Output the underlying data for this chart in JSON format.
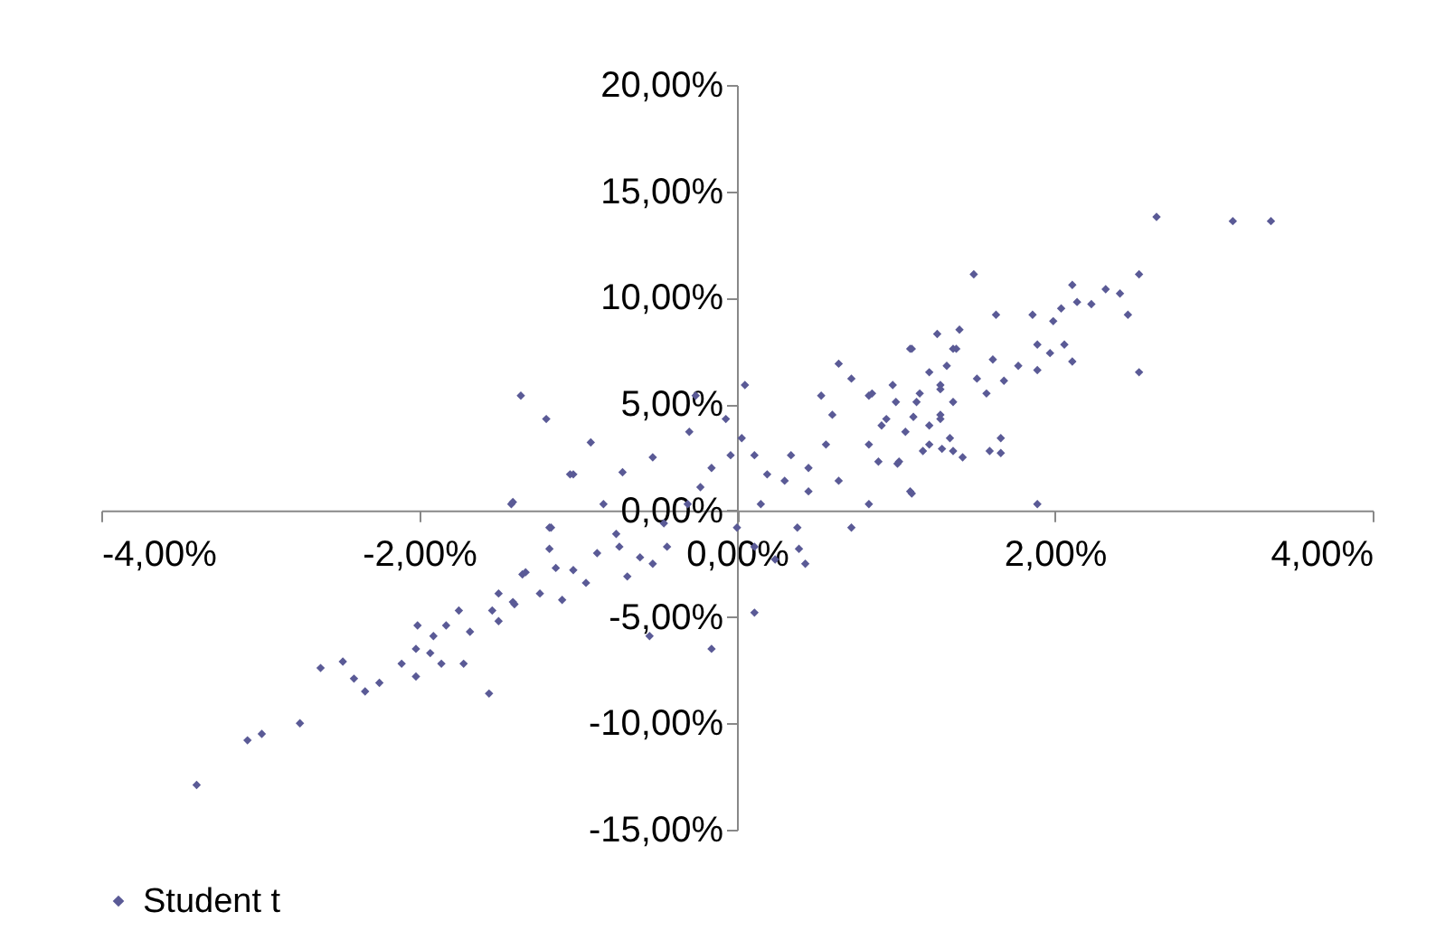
{
  "chart_data": {
    "type": "scatter",
    "marker": "diamond",
    "legend": "bottom",
    "grid": false,
    "xlim": [
      -4,
      4
    ],
    "ylim": [
      -15,
      20
    ],
    "xticks": [
      {
        "value": -4,
        "label": "-4,00%"
      },
      {
        "value": -2,
        "label": "-2,00%"
      },
      {
        "value": 0,
        "label": "0,00%"
      },
      {
        "value": 2,
        "label": "2,00%"
      },
      {
        "value": 4,
        "label": "4,00%"
      }
    ],
    "yticks": [
      {
        "value": -15,
        "label": "-15,00%"
      },
      {
        "value": -10,
        "label": "-10,00%"
      },
      {
        "value": -5,
        "label": "-5,00%"
      },
      {
        "value": 0,
        "label": "0,00%"
      },
      {
        "value": 5,
        "label": "5,00%"
      },
      {
        "value": 10,
        "label": "10,00%"
      },
      {
        "value": 15,
        "label": "15,00%"
      },
      {
        "value": 20,
        "label": "20,00%"
      }
    ],
    "series": [
      {
        "name": "Student t",
        "color": "#5a5a96",
        "x": [
          -3.4,
          -3.08,
          -2.99,
          -2.75,
          -2.62,
          -2.48,
          -2.41,
          -2.34,
          -2.25,
          -2.11,
          -2.02,
          -2.02,
          -2.01,
          -1.93,
          -1.86,
          -1.91,
          -1.83,
          -1.75,
          -1.72,
          -1.68,
          -1.56,
          -1.54,
          -1.5,
          -1.5,
          -1.41,
          -1.35,
          -1.42,
          -1.17,
          -1.14,
          -1.1,
          -1.03,
          -0.95,
          -0.84,
          -0.74,
          -0.61,
          -0.55,
          -0.44,
          -0.16,
          0.11,
          -1.36,
          -1.2,
          -0.92,
          -0.3,
          -0.26,
          -0.07,
          0.05,
          -1.41,
          -1.05,
          -0.72,
          -0.53,
          -1.18,
          -1.18,
          -1.33,
          -1.24,
          -1.4,
          -1.03,
          -0.88,
          -0.76,
          -0.69,
          -0.53,
          -0.46,
          -0.31,
          -0.23,
          -0.16,
          -0.04,
          0.0,
          0.11,
          0.24,
          0.38,
          0.39,
          0.43,
          0.15,
          0.19,
          0.3,
          0.34,
          0.45,
          0.45,
          0.56,
          0.64,
          0.6,
          0.72,
          0.64,
          0.72,
          0.83,
          0.83,
          0.91,
          1.02,
          1.09,
          1.06,
          1.21,
          1.13,
          1.09,
          1.36,
          1.4,
          1.26,
          1.28,
          1.36,
          1.28,
          0.83,
          0.98,
          0.53,
          0.03,
          0.11,
          2.64,
          3.12,
          3.36,
          1.49,
          2.53,
          2.11,
          2.32,
          2.41,
          2.14,
          2.23,
          2.04,
          1.99,
          1.86,
          1.63,
          2.46,
          1.1,
          1.38,
          1.89,
          2.06,
          1.97,
          2.11,
          1.77,
          1.61,
          1.89,
          2.53,
          1.68,
          1.51,
          1.32,
          1.21,
          1.57,
          1.28,
          1.15,
          1.0,
          0.85,
          1.36,
          1.28,
          1.11,
          0.94,
          1.21,
          1.34,
          1.66,
          1.17,
          1.29,
          1.59,
          1.66,
          1.42,
          1.01,
          0.89,
          1.1,
          1.89
        ],
        "values": [
          -12.9,
          -10.8,
          -10.5,
          -10.0,
          -7.4,
          -7.1,
          -7.9,
          -8.5,
          -8.1,
          -7.2,
          -7.8,
          -6.5,
          -5.4,
          -6.7,
          -7.2,
          -5.9,
          -5.4,
          -4.7,
          -7.2,
          -5.7,
          -8.6,
          -4.7,
          -5.2,
          -3.9,
          -4.3,
          -3.0,
          0.3,
          -0.8,
          -2.7,
          -4.2,
          1.7,
          -3.4,
          0.3,
          -1.7,
          -2.2,
          -5.9,
          -1.7,
          -6.5,
          -4.8,
          5.4,
          4.3,
          3.2,
          3.7,
          5.4,
          4.3,
          5.9,
          0.4,
          1.7,
          1.8,
          2.5,
          -0.8,
          -1.8,
          -2.9,
          -3.9,
          -4.4,
          -2.8,
          -2.0,
          -1.1,
          -3.1,
          -2.5,
          -0.6,
          0.3,
          1.1,
          2.0,
          2.6,
          -0.8,
          -1.7,
          -2.3,
          -0.8,
          -1.8,
          -2.5,
          0.3,
          1.7,
          1.4,
          2.6,
          0.9,
          2.0,
          3.1,
          1.4,
          4.5,
          6.2,
          6.9,
          -0.8,
          0.3,
          3.1,
          4.0,
          2.3,
          0.9,
          3.7,
          3.1,
          5.1,
          7.6,
          7.6,
          8.5,
          8.3,
          5.9,
          2.8,
          4.3,
          5.4,
          5.9,
          5.4,
          3.4,
          2.6,
          13.8,
          13.6,
          13.6,
          11.1,
          11.1,
          10.6,
          10.4,
          10.2,
          9.8,
          9.7,
          9.5,
          8.9,
          9.2,
          9.2,
          9.2,
          7.6,
          7.6,
          7.8,
          7.8,
          7.4,
          7.0,
          6.8,
          7.1,
          6.6,
          6.5,
          6.1,
          6.2,
          6.8,
          6.5,
          5.5,
          5.7,
          5.5,
          5.1,
          5.5,
          5.1,
          4.5,
          4.4,
          4.3,
          4.0,
          3.4,
          3.4,
          2.8,
          2.9,
          2.8,
          2.7,
          2.5,
          2.2,
          2.3,
          0.8,
          0.3
        ]
      }
    ]
  }
}
